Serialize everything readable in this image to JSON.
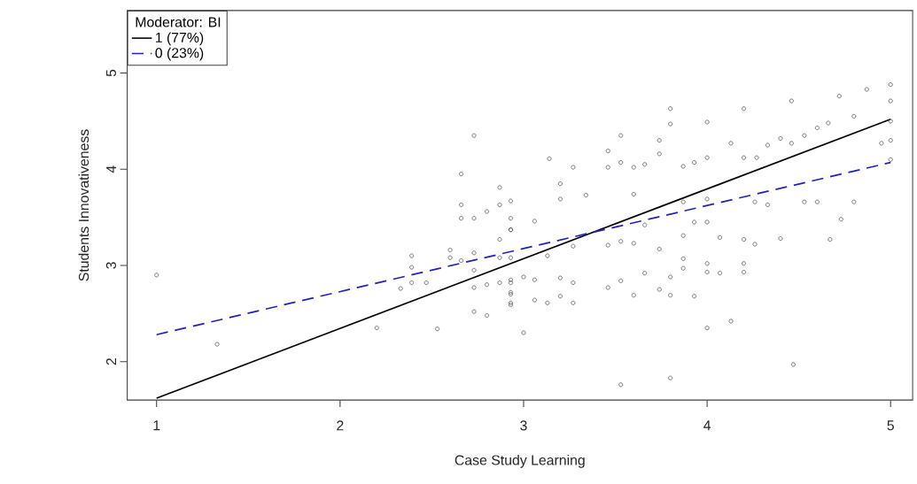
{
  "chart_data": {
    "type": "scatter",
    "xlabel": "Case Study Learning",
    "ylabel": "Students Innovativeness",
    "legend_title": "Moderator: BI",
    "legend": "top left",
    "grid": false,
    "xlim": [
      0.84,
      5.12
    ],
    "ylim": [
      1.6,
      5.65
    ],
    "xticks": [
      1,
      2,
      3,
      4,
      5
    ],
    "yticks": [
      2,
      3,
      4,
      5
    ],
    "series": [
      {
        "marker": "circle",
        "color": "#555555",
        "x": [
          1.0,
          1.33,
          2.2,
          2.53,
          2.39,
          2.39,
          2.33,
          2.39,
          2.47,
          2.6,
          2.6,
          2.66,
          2.73,
          2.73,
          2.73,
          2.73,
          2.8,
          2.8,
          2.87,
          2.87,
          2.87,
          2.93,
          2.93,
          2.93,
          2.93,
          2.73,
          2.66,
          2.87,
          2.66,
          2.87,
          2.93,
          2.8,
          2.66,
          2.73,
          2.93,
          2.93,
          3.8,
          3.8,
          4.2,
          4.0,
          4.46,
          4.72,
          4.87,
          5.0,
          5.0,
          5.0,
          5.0,
          5.0,
          4.95,
          4.8,
          4.66,
          4.6,
          4.53,
          4.46,
          4.4,
          4.33,
          4.27,
          4.2,
          4.13,
          4.0,
          3.87,
          3.93,
          3.74,
          3.74,
          3.66,
          3.53,
          3.46,
          3.53,
          3.6,
          3.46,
          3.27,
          3.14,
          3.2,
          3.2,
          3.34,
          3.6,
          3.87,
          4.0,
          4.26,
          4.33,
          4.53,
          4.6,
          4.8,
          4.73,
          4.4,
          4.67,
          4.2,
          4.26,
          4.07,
          4.0,
          3.93,
          3.87,
          3.87,
          3.74,
          3.6,
          3.46,
          3.53,
          3.27,
          3.13,
          3.06,
          2.93,
          3.66,
          4.2,
          4.0,
          3.0,
          3.53,
          3.8,
          4.47,
          4.0,
          4.13,
          3.93,
          3.8,
          3.74,
          3.6,
          3.46,
          3.27,
          3.13,
          3.06,
          2.93,
          2.93,
          3.2,
          4.2,
          4.07,
          4.0,
          3.87,
          3.66,
          3.53,
          3.8,
          3.27,
          3.06,
          2.93,
          3.0,
          3.2
        ],
        "values": [
          2.9,
          2.18,
          2.35,
          2.34,
          3.1,
          2.98,
          2.76,
          2.82,
          2.82,
          3.16,
          3.08,
          3.05,
          3.13,
          2.95,
          2.77,
          2.52,
          2.48,
          2.8,
          3.27,
          3.08,
          2.82,
          3.37,
          2.82,
          2.7,
          2.61,
          4.35,
          3.95,
          3.81,
          3.63,
          3.63,
          3.67,
          3.56,
          3.49,
          3.49,
          3.49,
          3.37,
          4.63,
          4.47,
          4.63,
          4.49,
          4.71,
          4.76,
          4.83,
          4.88,
          4.71,
          4.5,
          4.3,
          4.1,
          4.27,
          4.55,
          4.48,
          4.43,
          4.35,
          4.27,
          4.32,
          4.25,
          4.12,
          4.12,
          4.27,
          4.12,
          4.03,
          4.07,
          4.3,
          4.16,
          4.05,
          4.35,
          4.19,
          4.07,
          4.02,
          4.02,
          4.02,
          4.11,
          3.85,
          3.69,
          3.73,
          3.74,
          3.66,
          3.69,
          3.66,
          3.63,
          3.66,
          3.66,
          3.66,
          3.48,
          3.28,
          3.27,
          3.27,
          3.22,
          3.29,
          3.45,
          3.45,
          3.31,
          2.97,
          3.17,
          3.23,
          3.21,
          3.25,
          3.2,
          3.1,
          3.46,
          3.08,
          3.42,
          2.93,
          2.93,
          2.3,
          1.76,
          1.83,
          1.97,
          2.35,
          2.42,
          2.68,
          2.69,
          2.75,
          2.69,
          2.77,
          2.61,
          2.61,
          2.64,
          2.59,
          2.72,
          2.68,
          3.02,
          2.92,
          3.02,
          3.07,
          2.92,
          2.84,
          2.88,
          2.82,
          2.85,
          2.85,
          2.88,
          2.87
        ]
      },
      {
        "type": "line",
        "name": "1 (77%)",
        "marker": "none",
        "line_style": "solid",
        "color": "#000000",
        "x": [
          1,
          5
        ],
        "values": [
          1.62,
          4.52
        ]
      },
      {
        "type": "line",
        "name": "0 (23%)",
        "marker": "none",
        "line_style": "dashed",
        "color": "#2222bb",
        "x": [
          1,
          5
        ],
        "values": [
          2.28,
          4.07
        ]
      }
    ]
  }
}
